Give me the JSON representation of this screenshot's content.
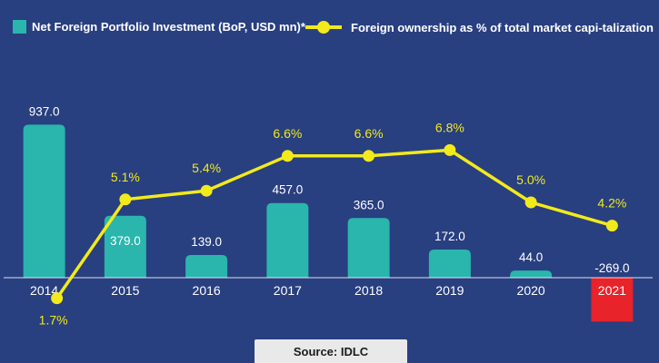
{
  "colors": {
    "background": "#283f80",
    "bar": "#2ab5ad",
    "bar_negative": "#e8232a",
    "line": "#f2ea1b",
    "text": "#ffffff",
    "line_label": "#f2ea1b"
  },
  "legend": {
    "bar_label": "Net Foreign Portfolio Investment (BoP, USD mn)*",
    "line_label": "Foreign ownership as % of total market capi-talization"
  },
  "source": "Source: IDLC",
  "chart_data": {
    "type": "bar",
    "categories": [
      "2014",
      "2015",
      "2016",
      "2017",
      "2018",
      "2019",
      "2020",
      "2021"
    ],
    "series": [
      {
        "name": "Net Foreign Portfolio Investment (BoP, USD mn)*",
        "type": "bar",
        "values": [
          937.0,
          379.0,
          139.0,
          457.0,
          365.0,
          172.0,
          44.0,
          -269.0
        ],
        "labels": [
          "937.0",
          "379.0",
          "139.0",
          "457.0",
          "365.0",
          "172.0",
          "44.0",
          "-269.0"
        ]
      },
      {
        "name": "Foreign ownership as % of total market capi-talization",
        "type": "line",
        "values": [
          1.7,
          5.1,
          5.4,
          6.6,
          6.6,
          6.8,
          5.0,
          4.2
        ],
        "labels": [
          "1.7%",
          "5.1%",
          "5.4%",
          "6.6%",
          "6.6%",
          "6.8%",
          "5.0%",
          "4.2%"
        ]
      }
    ],
    "title": "",
    "xlabel": "",
    "ylabel": "",
    "grid": false,
    "legend_position": "top"
  }
}
